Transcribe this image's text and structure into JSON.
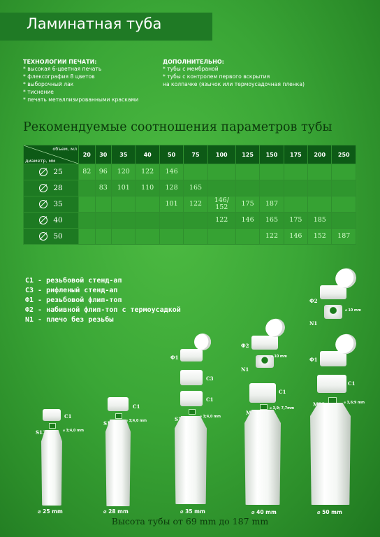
{
  "header": {
    "title": "Ламинатная туба"
  },
  "print_tech": {
    "heading": "ТЕХНОЛОГИИ ПЕЧАТИ:",
    "items": [
      "* высокая 6-цветная печать",
      "* флексография 8 цветов",
      "* выборочный лак",
      "* тиснение",
      "* печать металлизированными красками"
    ]
  },
  "additional": {
    "heading": "ДОПОЛНИТЕЛЬНО:",
    "items": [
      "* тубы с мембраной",
      "* тубы с контролем первого вскрытия",
      "на колпачке  (язычок или термоусадочная пленка)"
    ]
  },
  "table": {
    "title": "Рекомендуемые соотношения параметров тубы",
    "corner_top": "объем, мл",
    "corner_bottom": "диаметр, мм",
    "volumes": [
      "20",
      "30",
      "35",
      "40",
      "50",
      "75",
      "100",
      "125",
      "150",
      "175",
      "200",
      "250"
    ],
    "rows": [
      {
        "diameter": "25",
        "cells": [
          "82",
          "96",
          "120",
          "122",
          "146",
          "",
          "",
          "",
          "",
          "",
          "",
          ""
        ]
      },
      {
        "diameter": "28",
        "cells": [
          "",
          "83",
          "101",
          "110",
          "128",
          "165",
          "",
          "",
          "",
          "",
          "",
          ""
        ]
      },
      {
        "diameter": "35",
        "cells": [
          "",
          "",
          "",
          "",
          "101",
          "122",
          "146/\n152",
          "175",
          "187",
          "",
          "",
          ""
        ]
      },
      {
        "diameter": "40",
        "cells": [
          "",
          "",
          "",
          "",
          "",
          "",
          "122",
          "146",
          "165",
          "175",
          "185",
          ""
        ]
      },
      {
        "diameter": "50",
        "cells": [
          "",
          "",
          "",
          "",
          "",
          "",
          "",
          "",
          "122",
          "146",
          "152",
          "187"
        ]
      }
    ]
  },
  "legend": [
    "C1 - резьбовой стенд-ап",
    "C3 - рифленый стенд-ап",
    "Ф1 - резьбовой флип-топ",
    "Ф2 - набивной флип-топ с термоусадкой",
    "N1 - плечо без резьбы"
  ],
  "diagram": {
    "t25": {
      "thread": "S13",
      "cap": "C1",
      "neck": "⌀ 3;4,0 mm",
      "size": "⌀ 25 mm"
    },
    "t28": {
      "thread": "S13",
      "cap": "C1",
      "neck": "⌀ 3;4,0 mm",
      "size": "⌀ 28 mm"
    },
    "t35": {
      "thread": "S13",
      "cap_f": "Ф1",
      "cap_c3": "C3",
      "cap_c1": "C1",
      "neck": "⌀ 3;4,0 mm",
      "size": "⌀ 35 mm"
    },
    "t40": {
      "thread": "M15",
      "cap_f": "Ф2",
      "neck_n": "N1",
      "n_dim": "⌀ 10 mm",
      "cap_c1": "C1",
      "neck": "⌀ 3,9; 7,7mm",
      "size": "⌀ 40 mm"
    },
    "t50": {
      "thread": "M22",
      "cap_f2": "Ф2",
      "neck_n": "N1",
      "n_dim": "⌀ 10 mm",
      "cap_f1": "Ф1",
      "cap_c1": "C1",
      "neck": "⌀ 3,6;9 mm",
      "size": "⌀ 50 mm"
    }
  },
  "footer": "Высота тубы от 69 mm до 187 mm",
  "colors": {
    "title_bar": "#1f7a25",
    "table_header": "#0d5a16",
    "heading_text": "#0c3a0c"
  }
}
